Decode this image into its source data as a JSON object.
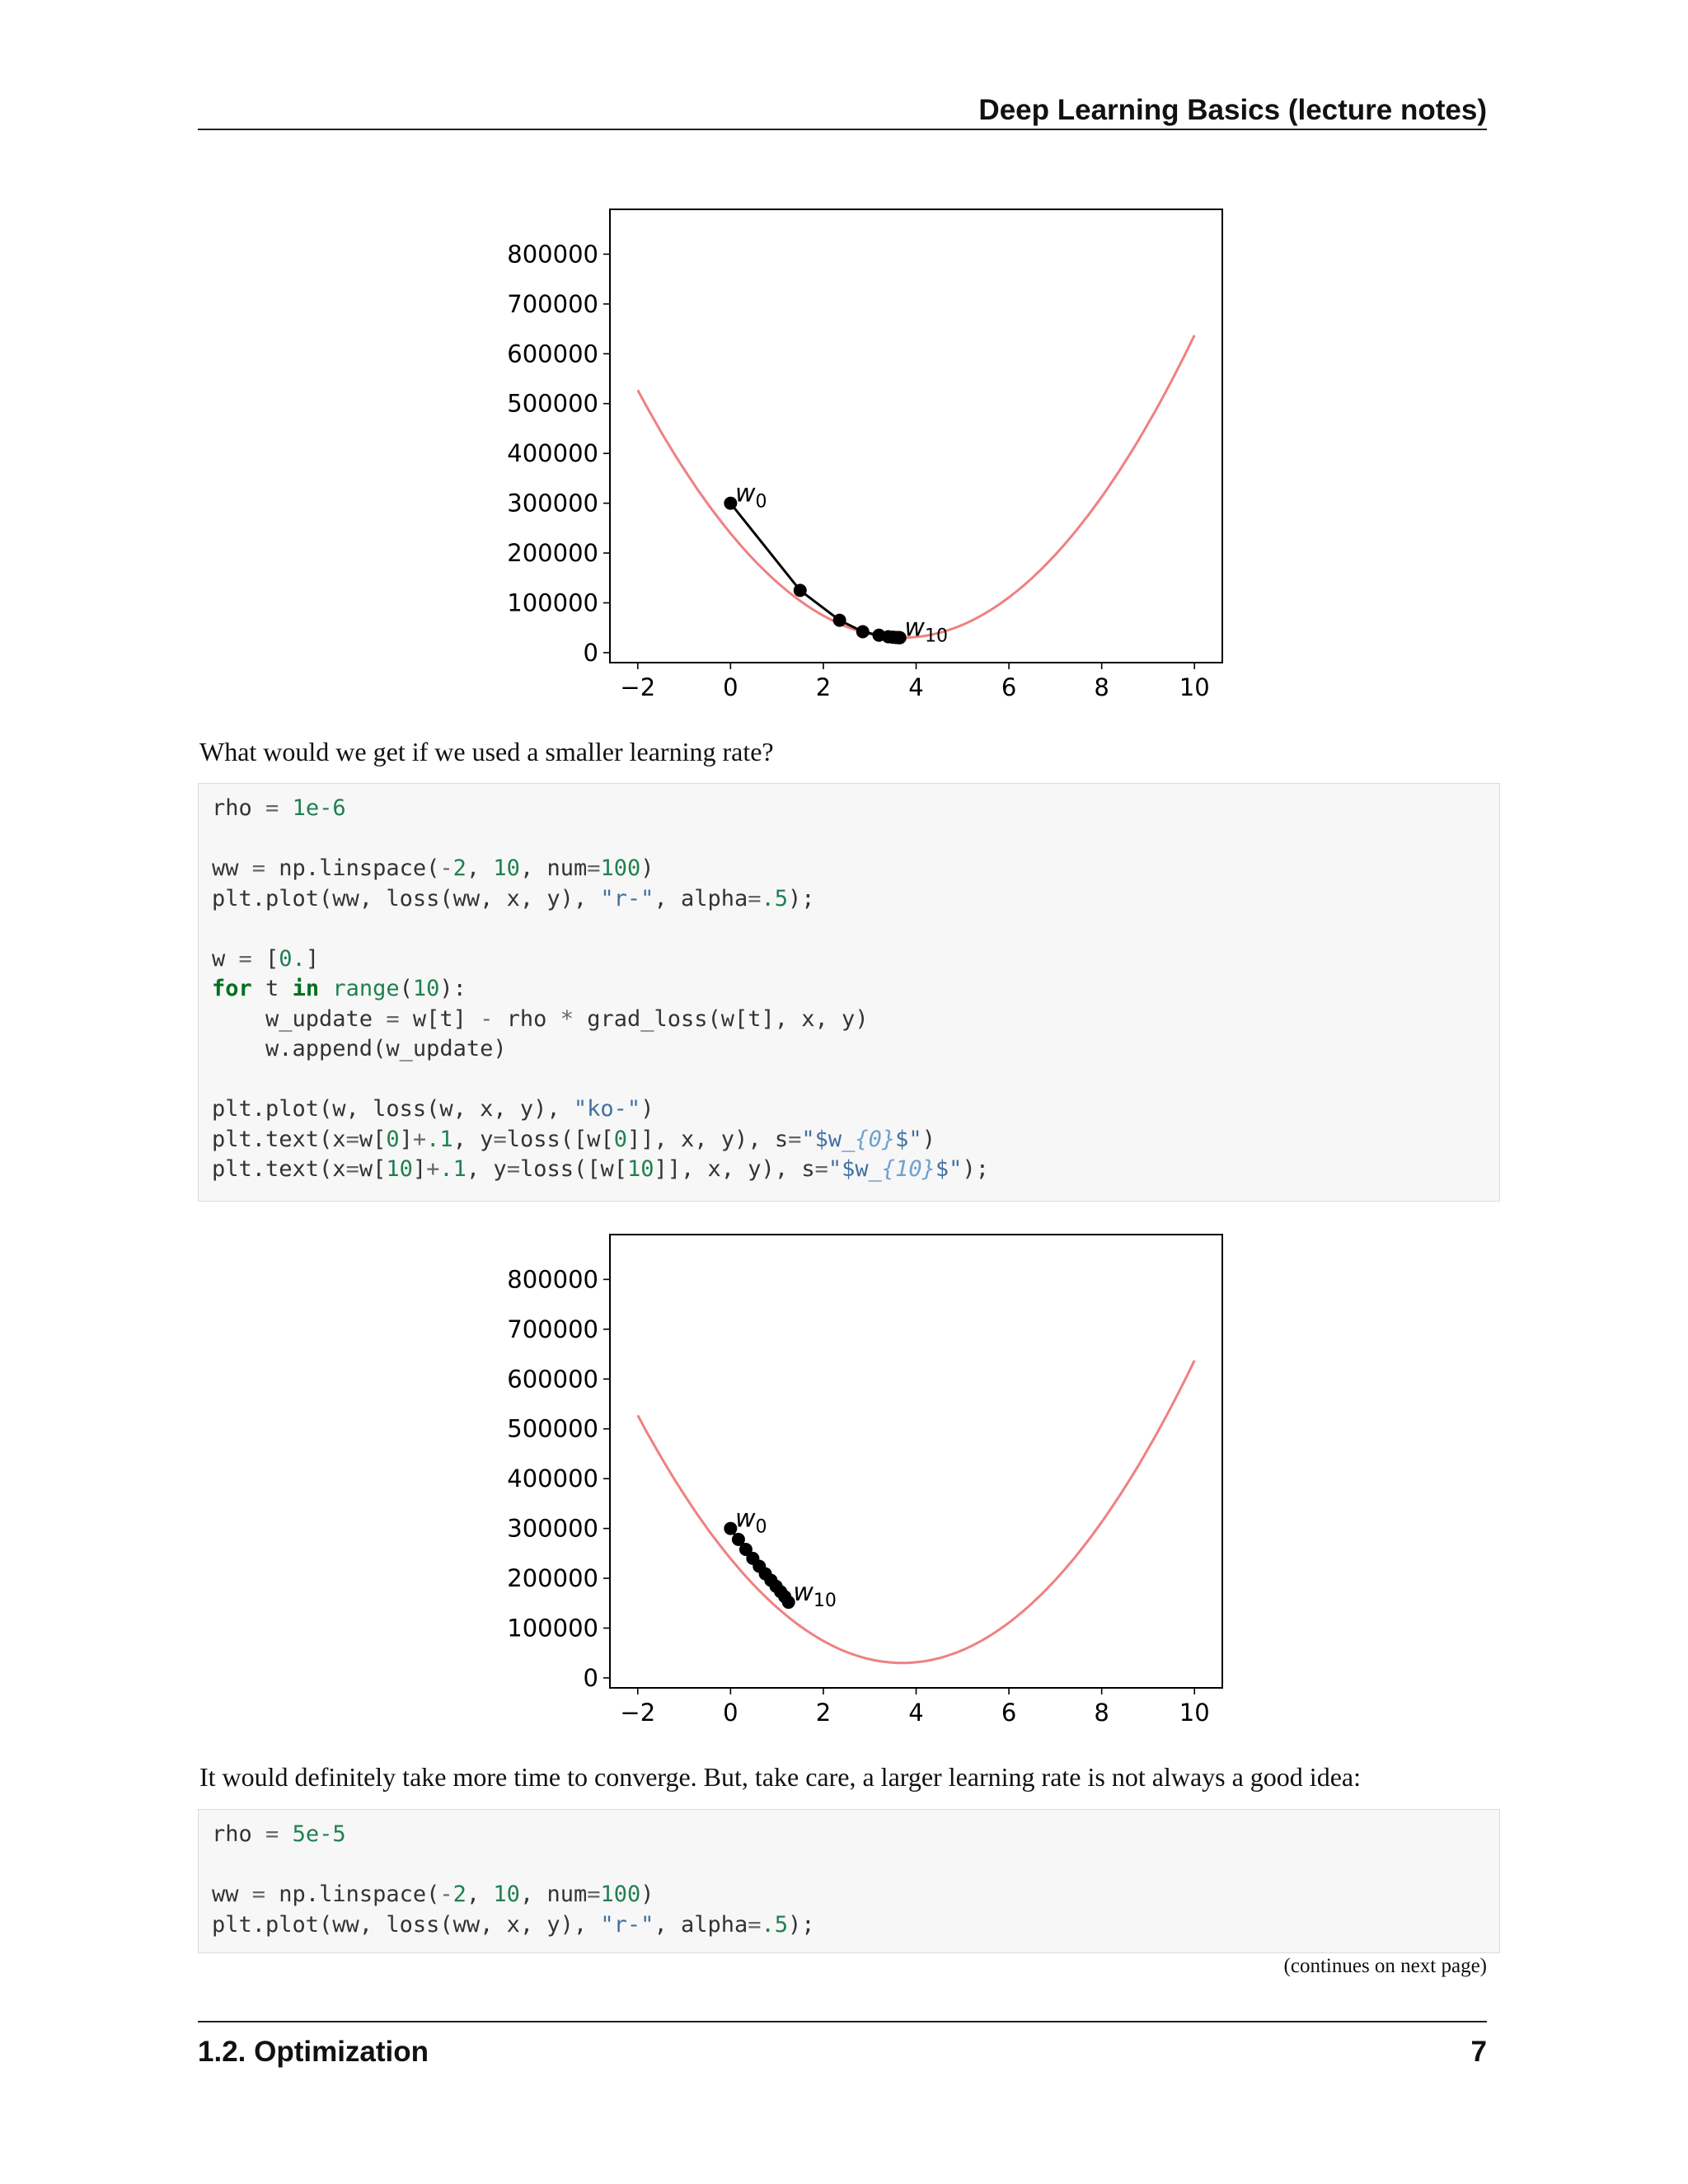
{
  "header": {
    "title": "Deep Learning Basics (lecture notes)"
  },
  "paragraphs": {
    "p1": "What would we get if we used a smaller learning rate?",
    "p2": "It would definitely take more time to converge. But, take care, a larger learning rate is not always a good idea:"
  },
  "continues_note": "(continues on next page)",
  "footer": {
    "section": "1.2.  Optimization",
    "page_number": "7"
  },
  "code_blocks": [
    {
      "lines": [
        "rho = 1e-6",
        "",
        "ww = np.linspace(-2, 10, num=100)",
        "plt.plot(ww, loss(ww, x, y), \"r-\", alpha=.5);",
        "",
        "w = [0.]",
        "for t in range(10):",
        "    w_update = w[t] - rho * grad_loss(w[t], x, y)",
        "    w.append(w_update)",
        "",
        "plt.plot(w, loss(w, x, y), \"ko-\")",
        "plt.text(x=w[0]+.1, y=loss([w[0]], x, y), s=\"$w_{0}$\")",
        "plt.text(x=w[10]+.1, y=loss([w[10]], x, y), s=\"$w_{10}$\");"
      ]
    },
    {
      "lines": [
        "rho = 5e-5",
        "",
        "ww = np.linspace(-2, 10, num=100)",
        "plt.plot(ww, loss(ww, x, y), \"r-\", alpha=.5);"
      ]
    }
  ],
  "chart_data": [
    {
      "type": "line",
      "xlim": [
        -2.6,
        10.6
      ],
      "ylim": [
        -20000,
        890000
      ],
      "xticks": [
        -2,
        0,
        2,
        4,
        6,
        8,
        10
      ],
      "xtick_labels": [
        "−2",
        "0",
        "2",
        "4",
        "6",
        "8",
        "10"
      ],
      "yticks": [
        0,
        100000,
        200000,
        300000,
        400000,
        500000,
        600000,
        700000,
        800000
      ],
      "ytick_labels": [
        "0",
        "100000",
        "200000",
        "300000",
        "400000",
        "500000",
        "600000",
        "700000",
        "800000"
      ],
      "curve": {
        "color": "#f08080",
        "x_range": [
          -2,
          10
        ],
        "vertex_x": 3.7,
        "vertex_y": 30000,
        "coef": 15300
      },
      "iterates": {
        "color": "#000000",
        "x": [
          0,
          1.5,
          2.35,
          2.85,
          3.2,
          3.4,
          3.5,
          3.56,
          3.6,
          3.63,
          3.65
        ],
        "y": [
          300000,
          125000,
          65000,
          42000,
          35000,
          32000,
          31000,
          30500,
          30300,
          30200,
          30100
        ]
      },
      "annotations": [
        {
          "text": "w",
          "sub": "0",
          "x": 0.1,
          "y": 300000
        },
        {
          "text": "w",
          "sub": "10",
          "x": 3.75,
          "y": 30100
        }
      ]
    },
    {
      "type": "line",
      "xlim": [
        -2.6,
        10.6
      ],
      "ylim": [
        -20000,
        890000
      ],
      "xticks": [
        -2,
        0,
        2,
        4,
        6,
        8,
        10
      ],
      "xtick_labels": [
        "−2",
        "0",
        "2",
        "4",
        "6",
        "8",
        "10"
      ],
      "yticks": [
        0,
        100000,
        200000,
        300000,
        400000,
        500000,
        600000,
        700000,
        800000
      ],
      "ytick_labels": [
        "0",
        "100000",
        "200000",
        "300000",
        "400000",
        "500000",
        "600000",
        "700000",
        "800000"
      ],
      "curve": {
        "color": "#f08080",
        "x_range": [
          -2,
          10
        ],
        "vertex_x": 3.7,
        "vertex_y": 30000,
        "coef": 15300
      },
      "iterates": {
        "color": "#000000",
        "x": [
          0,
          0.17,
          0.33,
          0.48,
          0.62,
          0.75,
          0.87,
          0.98,
          1.08,
          1.17,
          1.25
        ],
        "y": [
          300000,
          278000,
          258000,
          240000,
          224000,
          209000,
          196000,
          184000,
          173000,
          163000,
          152000
        ]
      },
      "annotations": [
        {
          "text": "w",
          "sub": "0",
          "x": 0.1,
          "y": 300000
        },
        {
          "text": "w",
          "sub": "10",
          "x": 1.35,
          "y": 152000
        }
      ]
    }
  ]
}
